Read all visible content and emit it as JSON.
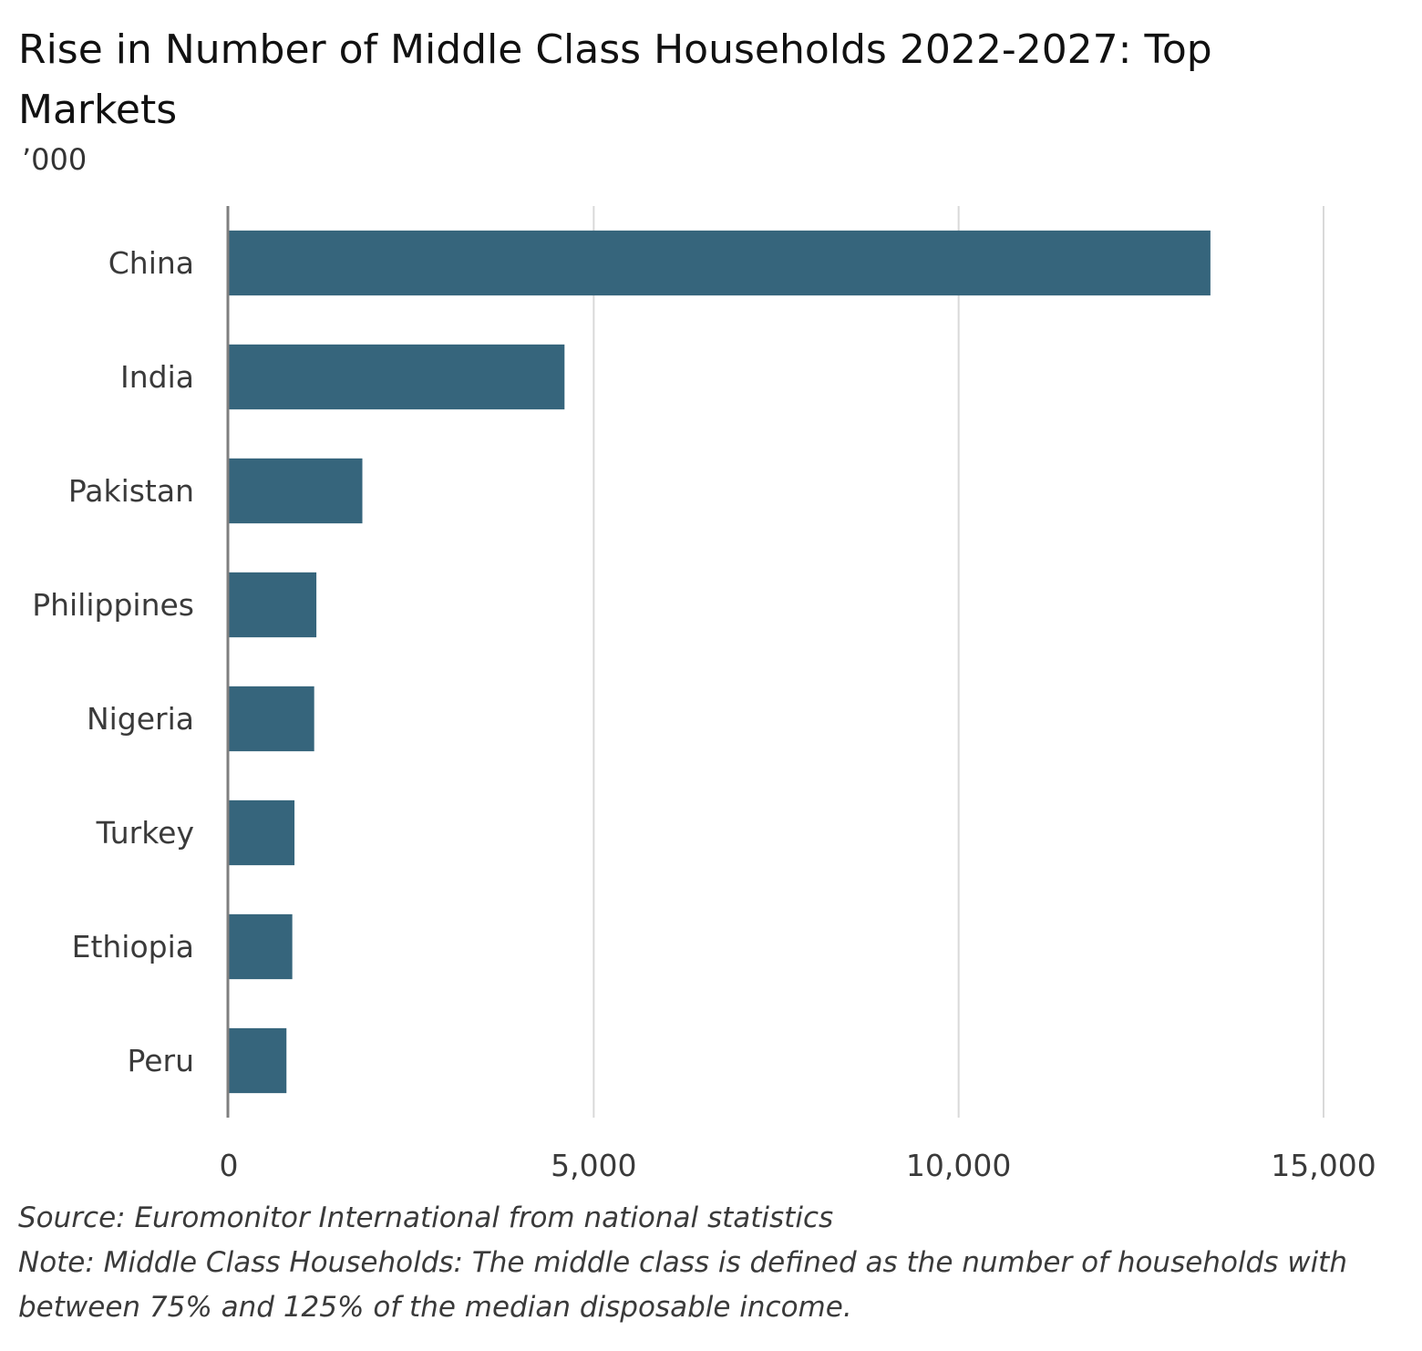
{
  "chart_data": {
    "type": "bar",
    "orientation": "horizontal",
    "title": "Rise in Number of Middle Class Households 2022-2027: Top Markets",
    "subtitle": "’000",
    "categories": [
      "China",
      "India",
      "Pakistan",
      "Philippines",
      "Nigeria",
      "Turkey",
      "Ethiopia",
      "Peru"
    ],
    "values": [
      13450,
      4600,
      1830,
      1200,
      1170,
      900,
      870,
      790
    ],
    "xlim": [
      0,
      15000
    ],
    "xticks": [
      0,
      5000,
      10000,
      15000
    ],
    "xtick_labels": [
      "0",
      "5,000",
      "10,000",
      "15,000"
    ],
    "grid": "vertical",
    "legend": "none",
    "bar_color": "#36657c"
  },
  "footnotes": {
    "source": "Source: Euromonitor International from national statistics",
    "note": "Note: Middle Class Households: The middle class is defined as the number of households with between 75% and 125% of the median disposable income."
  }
}
